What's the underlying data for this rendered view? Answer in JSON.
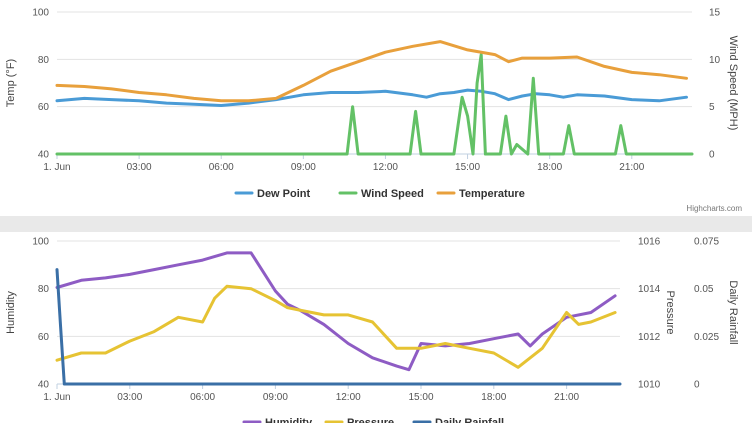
{
  "chart_data": [
    {
      "type": "line",
      "x_ticks": [
        "1. Jun",
        "03:00",
        "06:00",
        "09:00",
        "12:00",
        "15:00",
        "18:00",
        "21:00"
      ],
      "x_range_hours": [
        0,
        23.2
      ],
      "y_axes": [
        {
          "id": "temp",
          "label": "Temp (°F)",
          "position": "left",
          "range": [
            40,
            100
          ],
          "ticks": [
            "40",
            "60",
            "80",
            "100"
          ],
          "tick_values": [
            40,
            60,
            80,
            100
          ]
        },
        {
          "id": "wind",
          "label": "Wind Speed (MPH)",
          "position": "right",
          "range": [
            0,
            15
          ],
          "ticks": [
            "0",
            "5",
            "10",
            "15"
          ],
          "tick_values": [
            0,
            5,
            10,
            15
          ]
        }
      ],
      "grid": true,
      "legend_position": "bottom-center",
      "credits": "Highcharts.com",
      "series": [
        {
          "name": "Dew Point",
          "axis": "temp",
          "color": "#4a9bd6",
          "x": [
            0,
            1,
            2,
            3,
            4,
            5,
            6,
            7,
            8,
            9,
            10,
            11,
            12,
            13,
            13.5,
            14,
            14.5,
            15,
            15.5,
            16,
            16.5,
            17,
            17.5,
            18,
            18.5,
            19,
            20,
            21,
            22,
            23
          ],
          "y": [
            62.5,
            63.5,
            63,
            62.5,
            61.5,
            61,
            60.5,
            61.5,
            63,
            65,
            66,
            66,
            66.5,
            65,
            64,
            65.5,
            66,
            67,
            66.5,
            65.5,
            63,
            64.5,
            65.5,
            65,
            64,
            65,
            64.5,
            63,
            62.5,
            64
          ]
        },
        {
          "name": "Wind Speed",
          "axis": "wind",
          "color": "#63c166",
          "x": [
            0,
            10.6,
            10.8,
            11.0,
            12.9,
            13.1,
            13.3,
            14.5,
            14.8,
            15.0,
            15.2,
            15.35,
            15.5,
            15.65,
            15.9,
            16.2,
            16.4,
            16.6,
            16.8,
            17.2,
            17.4,
            17.6,
            18.5,
            18.7,
            18.9,
            20.4,
            20.6,
            20.8,
            23.2
          ],
          "y": [
            0,
            0,
            5,
            0,
            0,
            4.5,
            0,
            0,
            6,
            4,
            0,
            7.5,
            10.5,
            0,
            0,
            0,
            4,
            0,
            1,
            0,
            8,
            0,
            0,
            3,
            0,
            0,
            3,
            0,
            0
          ]
        },
        {
          "name": "Temperature",
          "axis": "temp",
          "color": "#e8a03c",
          "x": [
            0,
            1,
            2,
            3,
            4,
            5,
            6,
            7,
            8,
            9,
            10,
            11,
            12,
            13,
            14,
            15,
            16,
            16.5,
            17,
            18,
            19,
            20,
            21,
            22,
            23
          ],
          "y": [
            69,
            68.5,
            67.5,
            66,
            65,
            63.5,
            62.5,
            62.5,
            63.5,
            69,
            75,
            79,
            83,
            85.5,
            87.5,
            84,
            82,
            79,
            80.5,
            80.5,
            81,
            77,
            74.5,
            73.5,
            72
          ]
        }
      ]
    },
    {
      "type": "line",
      "x_ticks": [
        "1. Jun",
        "03:00",
        "06:00",
        "09:00",
        "12:00",
        "15:00",
        "18:00",
        "21:00"
      ],
      "x_range_hours": [
        0,
        23.2
      ],
      "y_axes": [
        {
          "id": "hum",
          "label": "Humidity",
          "position": "left",
          "range": [
            40,
            100
          ],
          "ticks": [
            "40",
            "60",
            "80",
            "100"
          ],
          "tick_values": [
            40,
            60,
            80,
            100
          ]
        },
        {
          "id": "pres",
          "label": "Pressure",
          "position": "right",
          "range": [
            1010,
            1016
          ],
          "ticks": [
            "1010",
            "1012",
            "1014",
            "1016"
          ],
          "tick_values": [
            1010,
            1012,
            1014,
            1016
          ]
        },
        {
          "id": "rain",
          "label": "Daily Rainfall",
          "position": "far-right",
          "range": [
            0,
            0.075
          ],
          "ticks": [
            "0",
            "0.025",
            "0.05",
            "0.075"
          ],
          "tick_values": [
            0,
            0.025,
            0.05,
            0.075
          ]
        }
      ],
      "grid": true,
      "legend_position": "bottom-center",
      "series": [
        {
          "name": "Humidity",
          "axis": "hum",
          "color": "#8e5cc4",
          "x": [
            0,
            1,
            2,
            3,
            4,
            5,
            6,
            7,
            8,
            9,
            9.5,
            10,
            11,
            12,
            13,
            14,
            14.5,
            15,
            16,
            17,
            18,
            19,
            19.5,
            20,
            21,
            22,
            23
          ],
          "y": [
            80.5,
            83.5,
            84.5,
            86,
            88,
            90,
            92,
            95,
            95,
            79,
            73.5,
            71,
            65,
            57,
            51,
            47.5,
            46,
            57,
            56,
            57,
            59,
            61,
            56,
            61,
            68,
            70,
            77
          ]
        },
        {
          "name": "Pressure",
          "axis": "pres",
          "color": "#e6c333",
          "x": [
            0,
            1,
            2,
            3,
            4,
            5,
            6,
            6.5,
            7,
            8,
            9,
            9.5,
            10,
            11,
            12,
            13,
            14,
            15,
            16,
            17,
            18,
            19,
            20,
            21,
            21.5,
            22,
            23
          ],
          "y": [
            1011.0,
            1011.3,
            1011.3,
            1011.8,
            1012.2,
            1012.8,
            1012.6,
            1013.6,
            1014.1,
            1014.0,
            1013.5,
            1013.2,
            1013.1,
            1012.9,
            1012.9,
            1012.6,
            1011.5,
            1011.5,
            1011.7,
            1011.5,
            1011.3,
            1010.7,
            1011.5,
            1013.0,
            1012.5,
            1012.6,
            1013.0
          ]
        },
        {
          "name": "Daily Rainfall",
          "axis": "rain",
          "color": "#3a6fa6",
          "x": [
            0,
            0.15,
            0.3,
            23.2
          ],
          "y": [
            0.06,
            0.03,
            0,
            0
          ]
        }
      ]
    }
  ]
}
